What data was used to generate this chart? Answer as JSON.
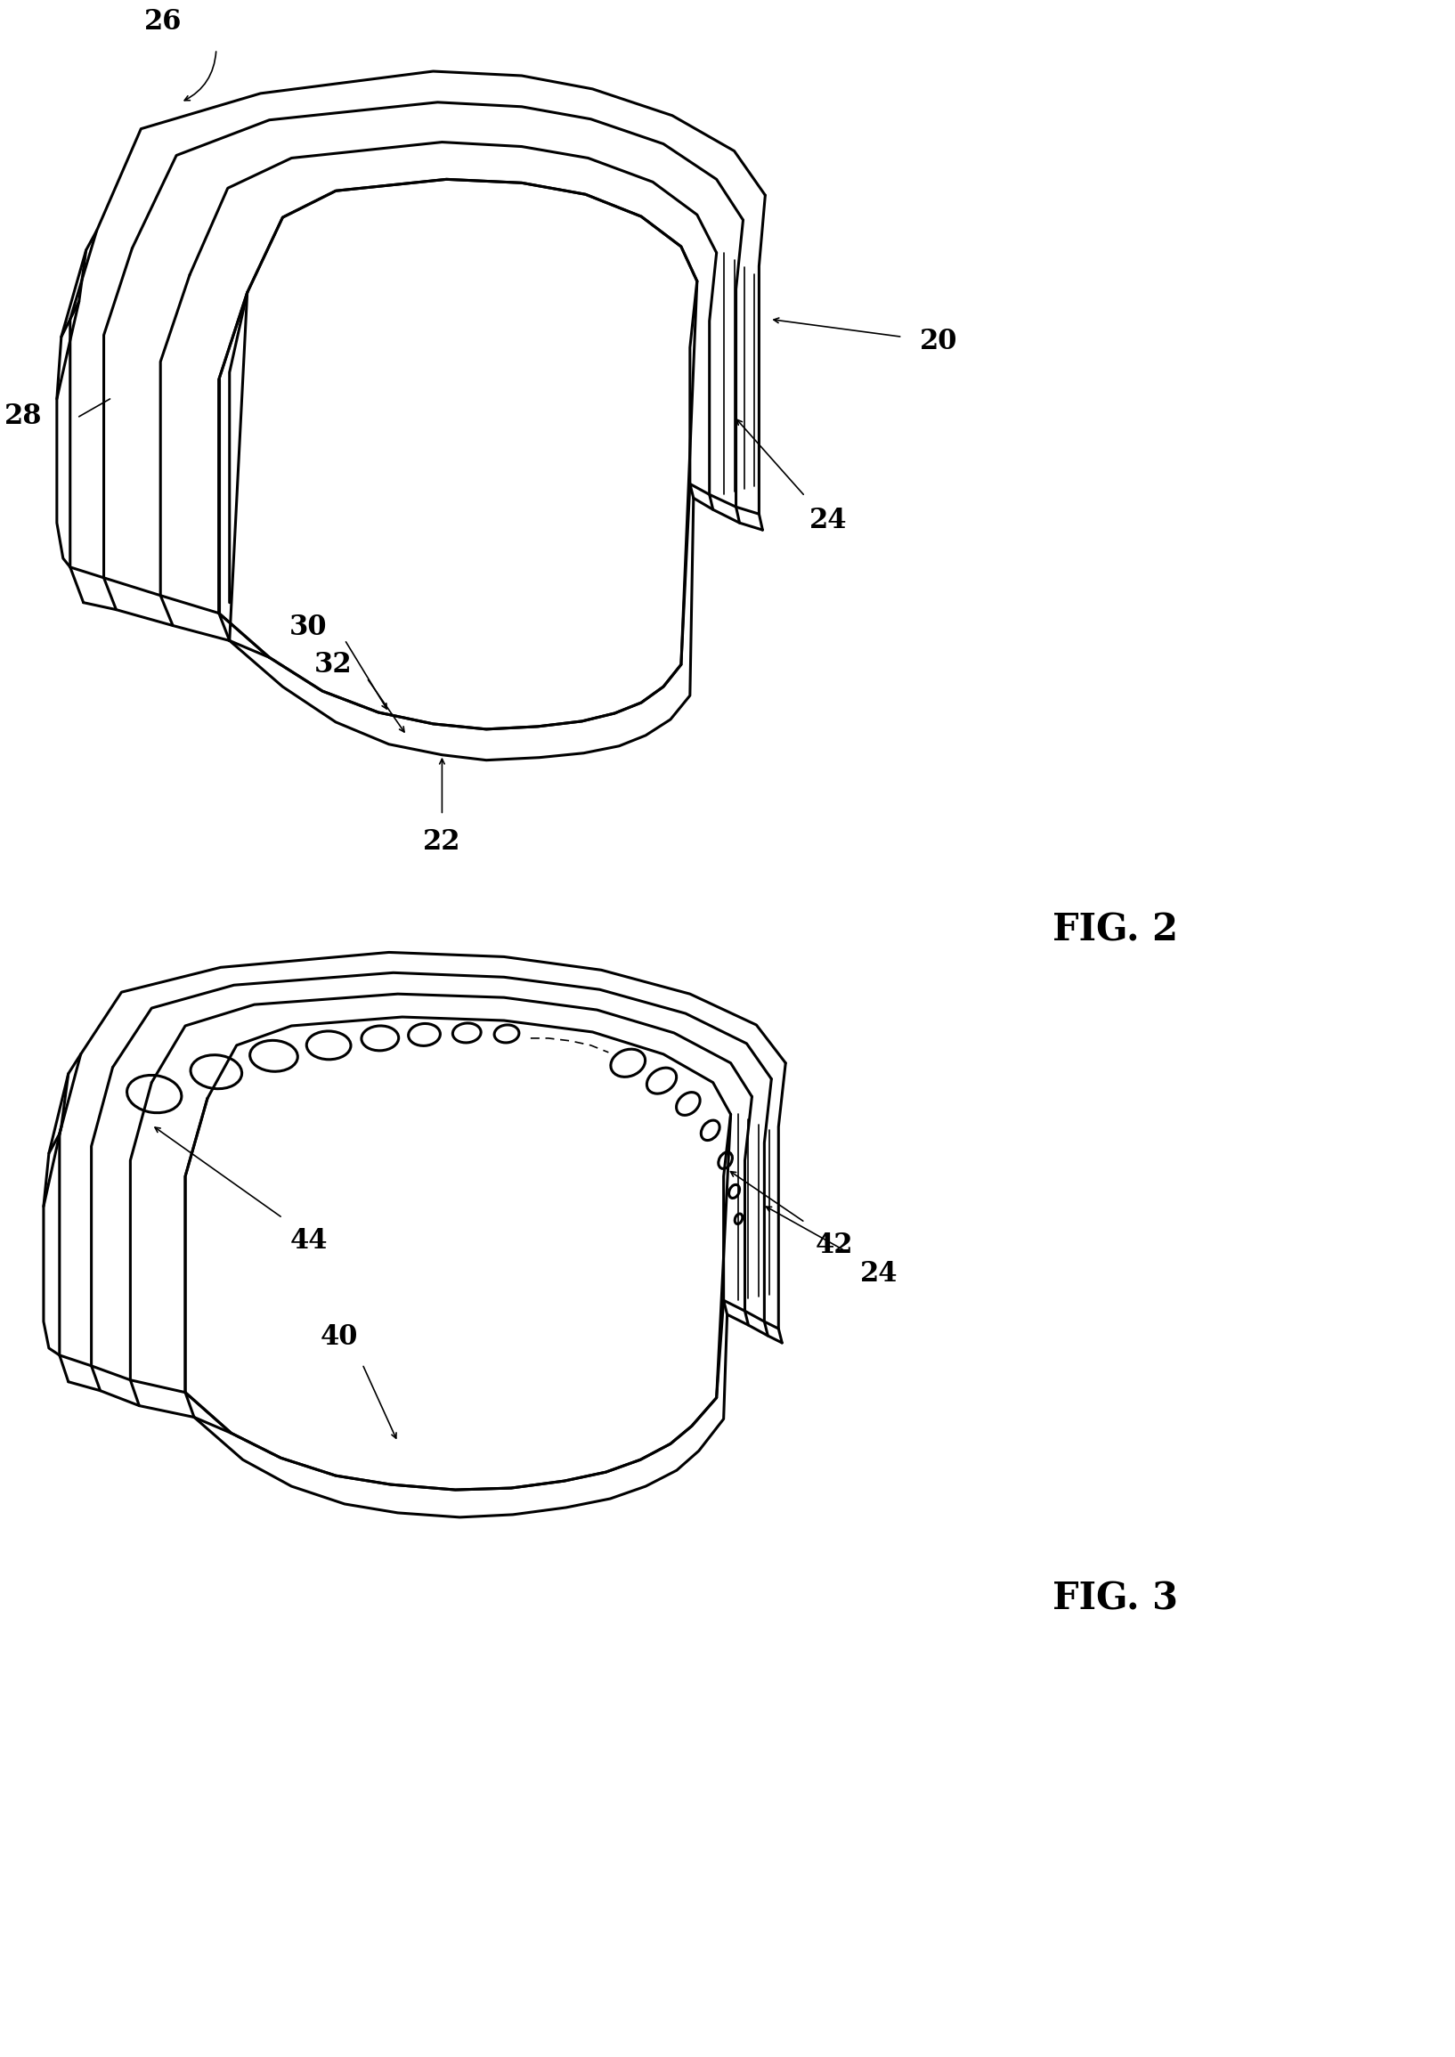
{
  "bg_color": "#ffffff",
  "line_color": "#000000",
  "lw": 2.2,
  "lw_thin": 1.2,
  "lw_label": 1.5,
  "fig2_title": "FIG. 2",
  "fig3_title": "FIG. 3",
  "fontsize_label": 22,
  "fontsize_title": 30
}
